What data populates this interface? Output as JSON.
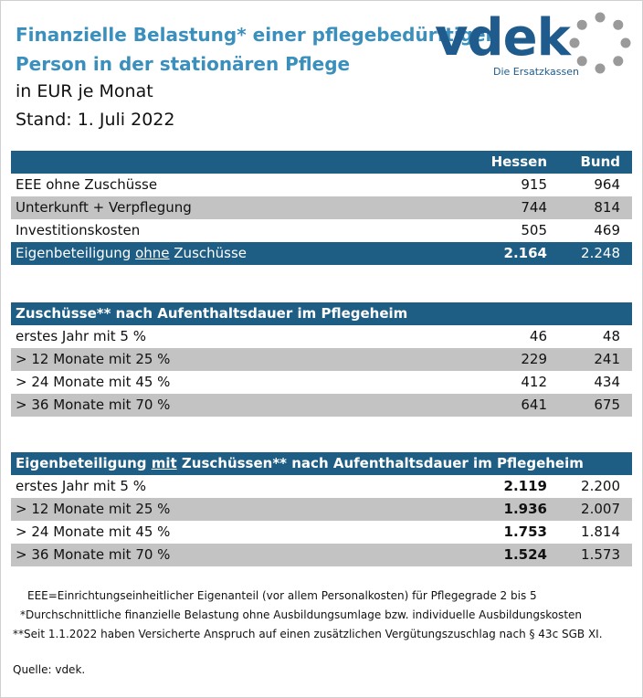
{
  "title": {
    "line1": "Finanzielle Belastung* einer pflegebedürftigen",
    "line2": "Person in der stationären Pflege",
    "line3": "in EUR je Monat",
    "line4": "Stand: 1. Juli 2022"
  },
  "logo": {
    "word": "vdek",
    "sub": "Die Ersatzkassen",
    "color": "#1f5b8c",
    "ring_color": "#9a9a9a"
  },
  "colors": {
    "header_bg": "#1e5d84",
    "stripe": "#c3c3c3",
    "title_blue": "#3a8fbd"
  },
  "table1": {
    "col_hessen": "Hessen",
    "col_bund": "Bund",
    "rows": [
      {
        "label": "EEE ohne Zuschüsse",
        "hessen": "915",
        "bund": "964"
      },
      {
        "label": "Unterkunft + Verpflegung",
        "hessen": "744",
        "bund": "814"
      },
      {
        "label": "Investitionskosten",
        "hessen": "505",
        "bund": "469"
      }
    ],
    "total": {
      "label_a": "Eigenbeteiligung ",
      "label_b": "ohne",
      "label_c": " Zuschüsse",
      "hessen": "2.164",
      "bund": "2.248"
    }
  },
  "table2": {
    "header": "Zuschüsse** nach Aufenthaltsdauer im Pflegeheim",
    "rows": [
      {
        "label": "erstes Jahr mit 5 %",
        "hessen": "46",
        "bund": "48"
      },
      {
        "label": "> 12 Monate mit 25 %",
        "hessen": "229",
        "bund": "241"
      },
      {
        "label": "> 24 Monate mit 45 %",
        "hessen": "412",
        "bund": "434"
      },
      {
        "label": "> 36 Monate mit 70 %",
        "hessen": "641",
        "bund": "675"
      }
    ]
  },
  "table3": {
    "header_a": "Eigenbeteiligung ",
    "header_b": "mit",
    "header_c": " Zuschüssen** nach Aufenthaltsdauer im Pflegeheim",
    "rows": [
      {
        "label": "erstes Jahr mit 5 %",
        "hessen": "2.119",
        "bund": "2.200"
      },
      {
        "label": "> 12 Monate mit 25 %",
        "hessen": "1.936",
        "bund": "2.007"
      },
      {
        "label": "> 24 Monate mit 45 %",
        "hessen": "1.753",
        "bund": "1.814"
      },
      {
        "label": "> 36 Monate mit 70 %",
        "hessen": "1.524",
        "bund": "1.573"
      }
    ]
  },
  "notes": {
    "n1": "EEE=Einrichtungseinheitlicher Eigenanteil (vor allem Personalkosten) für Pflegegrade 2 bis 5",
    "n2": "*Durchschnittliche finanzielle Belastung ohne Ausbildungsumlage bzw. individuelle Ausbildungskosten",
    "n3": "**Seit 1.1.2022 haben Versicherte Anspruch auf einen zusätzlichen Vergütungszuschlag nach § 43c SGB XI.",
    "source": "Quelle: vdek."
  }
}
